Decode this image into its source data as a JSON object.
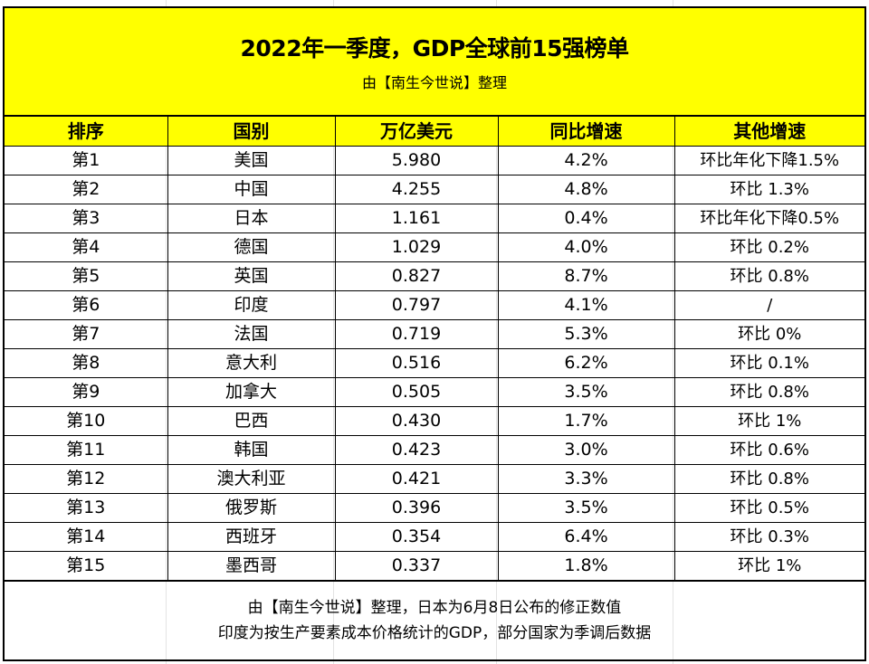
{
  "title": "2022年一季度，GDP全球前15强榜单",
  "subtitle": "由【南生今世说】整理",
  "columns": [
    "排序",
    "国别",
    "万亿美元",
    "同比增速",
    "其他增速"
  ],
  "rows": [
    [
      "第1",
      "美国",
      "5.980",
      "4.2%",
      "环比年化下降1.5%"
    ],
    [
      "第2",
      "中国",
      "4.255",
      "4.8%",
      "环比 1.3%"
    ],
    [
      "第3",
      "日本",
      "1.161",
      "0.4%",
      "环比年化下降0.5%"
    ],
    [
      "第4",
      "德国",
      "1.029",
      "4.0%",
      "环比 0.2%"
    ],
    [
      "第5",
      "英国",
      "0.827",
      "8.7%",
      "环比 0.8%"
    ],
    [
      "第6",
      "印度",
      "0.797",
      "4.1%",
      "/"
    ],
    [
      "第7",
      "法国",
      "0.719",
      "5.3%",
      "环比 0%"
    ],
    [
      "第8",
      "意大利",
      "0.516",
      "6.2%",
      "环比 0.1%"
    ],
    [
      "第9",
      "加拿大",
      "0.505",
      "3.5%",
      "环比 0.8%"
    ],
    [
      "第10",
      "巴西",
      "0.430",
      "1.7%",
      "环比 1%"
    ],
    [
      "第11",
      "韩国",
      "0.423",
      "3.0%",
      "环比 0.6%"
    ],
    [
      "第12",
      "澳大利亚",
      "0.421",
      "3.3%",
      "环比 0.8%"
    ],
    [
      "第13",
      "俄罗斯",
      "0.396",
      "3.5%",
      "环比 0.5%"
    ],
    [
      "第14",
      "西班牙",
      "0.354",
      "6.4%",
      "环比 0.3%"
    ],
    [
      "第15",
      "墨西哥",
      "0.337",
      "1.8%",
      "环比 1%"
    ]
  ],
  "footer": {
    "line1": "由【南生今世说】整理，日本为6月8日公布的修正数值",
    "line2": "印度为按生产要素成本价格统计的GDP，部分国家为季调后数据"
  },
  "colors": {
    "header_bg": "#ffff00",
    "border": "#000000"
  }
}
